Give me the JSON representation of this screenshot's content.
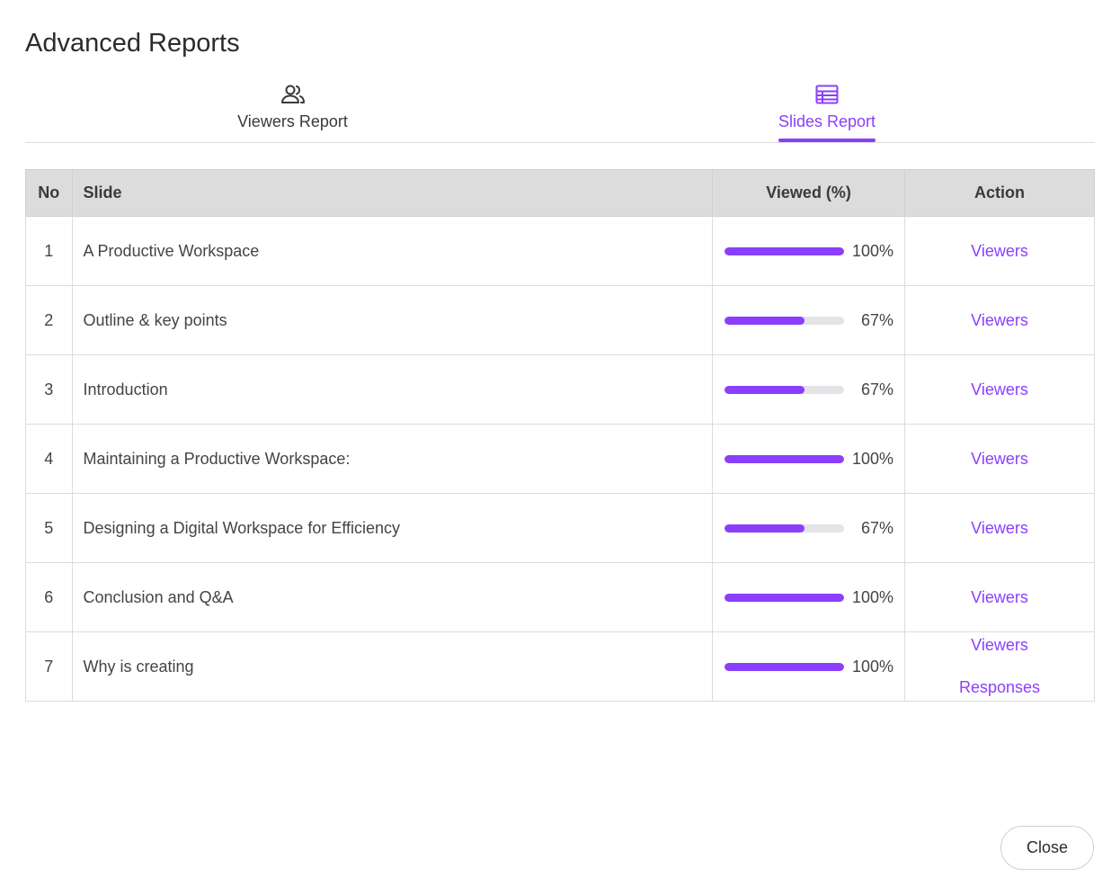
{
  "dialog": {
    "title": "Advanced Reports",
    "close_label": "Close"
  },
  "tabs": [
    {
      "label": "Viewers Report",
      "icon": "users-icon",
      "active": false
    },
    {
      "label": "Slides Report",
      "icon": "table-icon",
      "active": true
    }
  ],
  "colors": {
    "accent": "#8a3ffc",
    "header_bg": "#dcdcdc",
    "track": "#e3e3e8"
  },
  "table": {
    "headers": {
      "no": "No",
      "slide": "Slide",
      "viewed": "Viewed (%)",
      "action": "Action"
    },
    "rows": [
      {
        "no": "1",
        "slide": "A Productive Workspace",
        "viewed_pct": 100,
        "viewed_label": "100%",
        "actions": [
          "Viewers"
        ]
      },
      {
        "no": "2",
        "slide": "Outline & key points",
        "viewed_pct": 67,
        "viewed_label": "67%",
        "actions": [
          "Viewers"
        ]
      },
      {
        "no": "3",
        "slide": "Introduction",
        "viewed_pct": 67,
        "viewed_label": "67%",
        "actions": [
          "Viewers"
        ]
      },
      {
        "no": "4",
        "slide": "Maintaining a Productive Workspace:",
        "viewed_pct": 100,
        "viewed_label": "100%",
        "actions": [
          "Viewers"
        ]
      },
      {
        "no": "5",
        "slide": "Designing a Digital Workspace for Efficiency",
        "viewed_pct": 67,
        "viewed_label": "67%",
        "actions": [
          "Viewers"
        ]
      },
      {
        "no": "6",
        "slide": "Conclusion and Q&A",
        "viewed_pct": 100,
        "viewed_label": "100%",
        "actions": [
          "Viewers"
        ]
      },
      {
        "no": "7",
        "slide": "Why is creating",
        "viewed_pct": 100,
        "viewed_label": "100%",
        "actions": [
          "Viewers",
          "Responses"
        ]
      }
    ]
  }
}
